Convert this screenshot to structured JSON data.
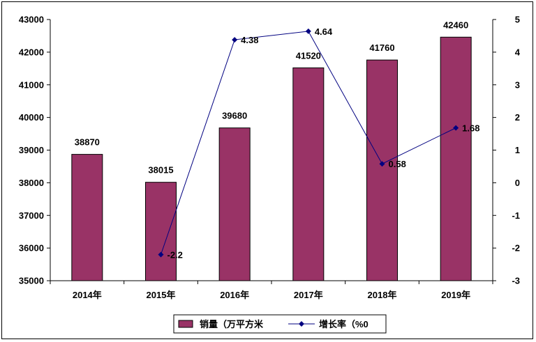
{
  "chart_data": {
    "type": "bar",
    "categories": [
      "2014年",
      "2015年",
      "2016年",
      "2017年",
      "2018年",
      "2019年"
    ],
    "series": [
      {
        "name": "销量（万平方米",
        "type": "bar",
        "axis": "left",
        "values": [
          38870,
          38015,
          39680,
          41520,
          41760,
          42460
        ],
        "color": "#993366"
      },
      {
        "name": "增长率（%0",
        "type": "line",
        "axis": "right",
        "values": [
          null,
          -2.2,
          4.38,
          4.64,
          0.58,
          1.68
        ],
        "labels": [
          "",
          "-2.2",
          "4.38",
          "4.64",
          "0.58",
          "1.68"
        ],
        "color": "#000080"
      }
    ],
    "left_axis": {
      "min": 35000,
      "max": 43000,
      "step": 1000,
      "ticks": [
        "35000",
        "36000",
        "37000",
        "38000",
        "39000",
        "40000",
        "41000",
        "42000",
        "43000"
      ]
    },
    "right_axis": {
      "min": -3,
      "max": 5,
      "step": 1,
      "ticks": [
        "-3",
        "-2",
        "-1",
        "0",
        "1",
        "2",
        "3",
        "4",
        "5"
      ]
    },
    "bar_labels": [
      "38870",
      "38015",
      "39680",
      "41520",
      "41760",
      "42460"
    ],
    "legend": {
      "position": "bottom",
      "items": [
        "销量（万平方米",
        "增长率（%0"
      ]
    },
    "grid": false
  }
}
